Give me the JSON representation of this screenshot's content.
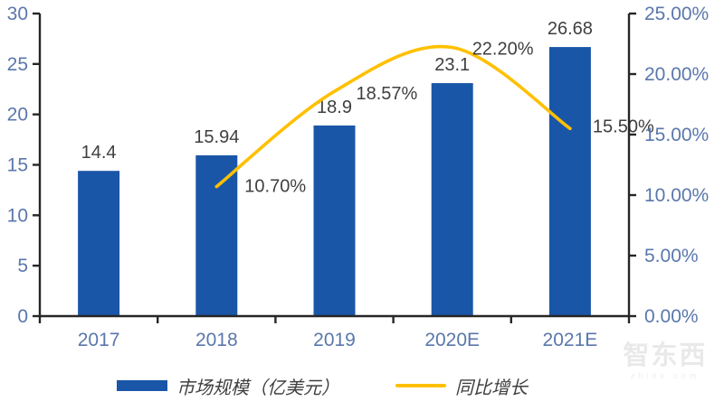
{
  "chart_data": {
    "type": "bar",
    "subtype": "combo-bar-line",
    "title": "",
    "categories": [
      "2017",
      "2018",
      "2019",
      "2020E",
      "2021E"
    ],
    "series": [
      {
        "name": "市场规模（亿美元）",
        "type": "bar",
        "axis": "left",
        "color": "#1A56A8",
        "values": [
          14.4,
          15.94,
          18.9,
          23.1,
          26.68
        ],
        "labels": [
          "14.4",
          "15.94",
          "18.9",
          "23.1",
          "26.68"
        ]
      },
      {
        "name": "同比增长",
        "type": "line",
        "axis": "right",
        "color": "#FFC000",
        "values": [
          null,
          10.7,
          18.57,
          22.2,
          15.5
        ],
        "labels": [
          null,
          "10.70%",
          "18.57%",
          "22.20%",
          "15.50%"
        ]
      }
    ],
    "left_axis": {
      "min": 0,
      "max": 30,
      "step": 5,
      "tick_labels": [
        "0",
        "5",
        "10",
        "15",
        "20",
        "25",
        "30"
      ]
    },
    "right_axis": {
      "min": 0,
      "max": 25,
      "step": 5,
      "tick_labels": [
        "0.00%",
        "5.00%",
        "10.00%",
        "15.00%",
        "20.00%",
        "25.00%"
      ]
    },
    "legend": {
      "position": "bottom",
      "items": [
        {
          "label": "市场规模（亿美元）",
          "swatch": "bar",
          "color": "#1A56A8"
        },
        {
          "label": "同比增长",
          "swatch": "line",
          "color": "#FFC000"
        }
      ]
    },
    "grid": false,
    "smoothed_line": true
  },
  "watermark": {
    "name": "智东西",
    "domain": "zhidx.com"
  },
  "colors": {
    "bar": "#1A56A8",
    "line": "#FFC000",
    "axis": "#262626",
    "axis_tick_label": "#5A77AC",
    "data_label": "#3F3F3F",
    "legend_text": "#3F3F3F",
    "watermark": "#E9E9E9",
    "background": "#FFFFFF"
  }
}
